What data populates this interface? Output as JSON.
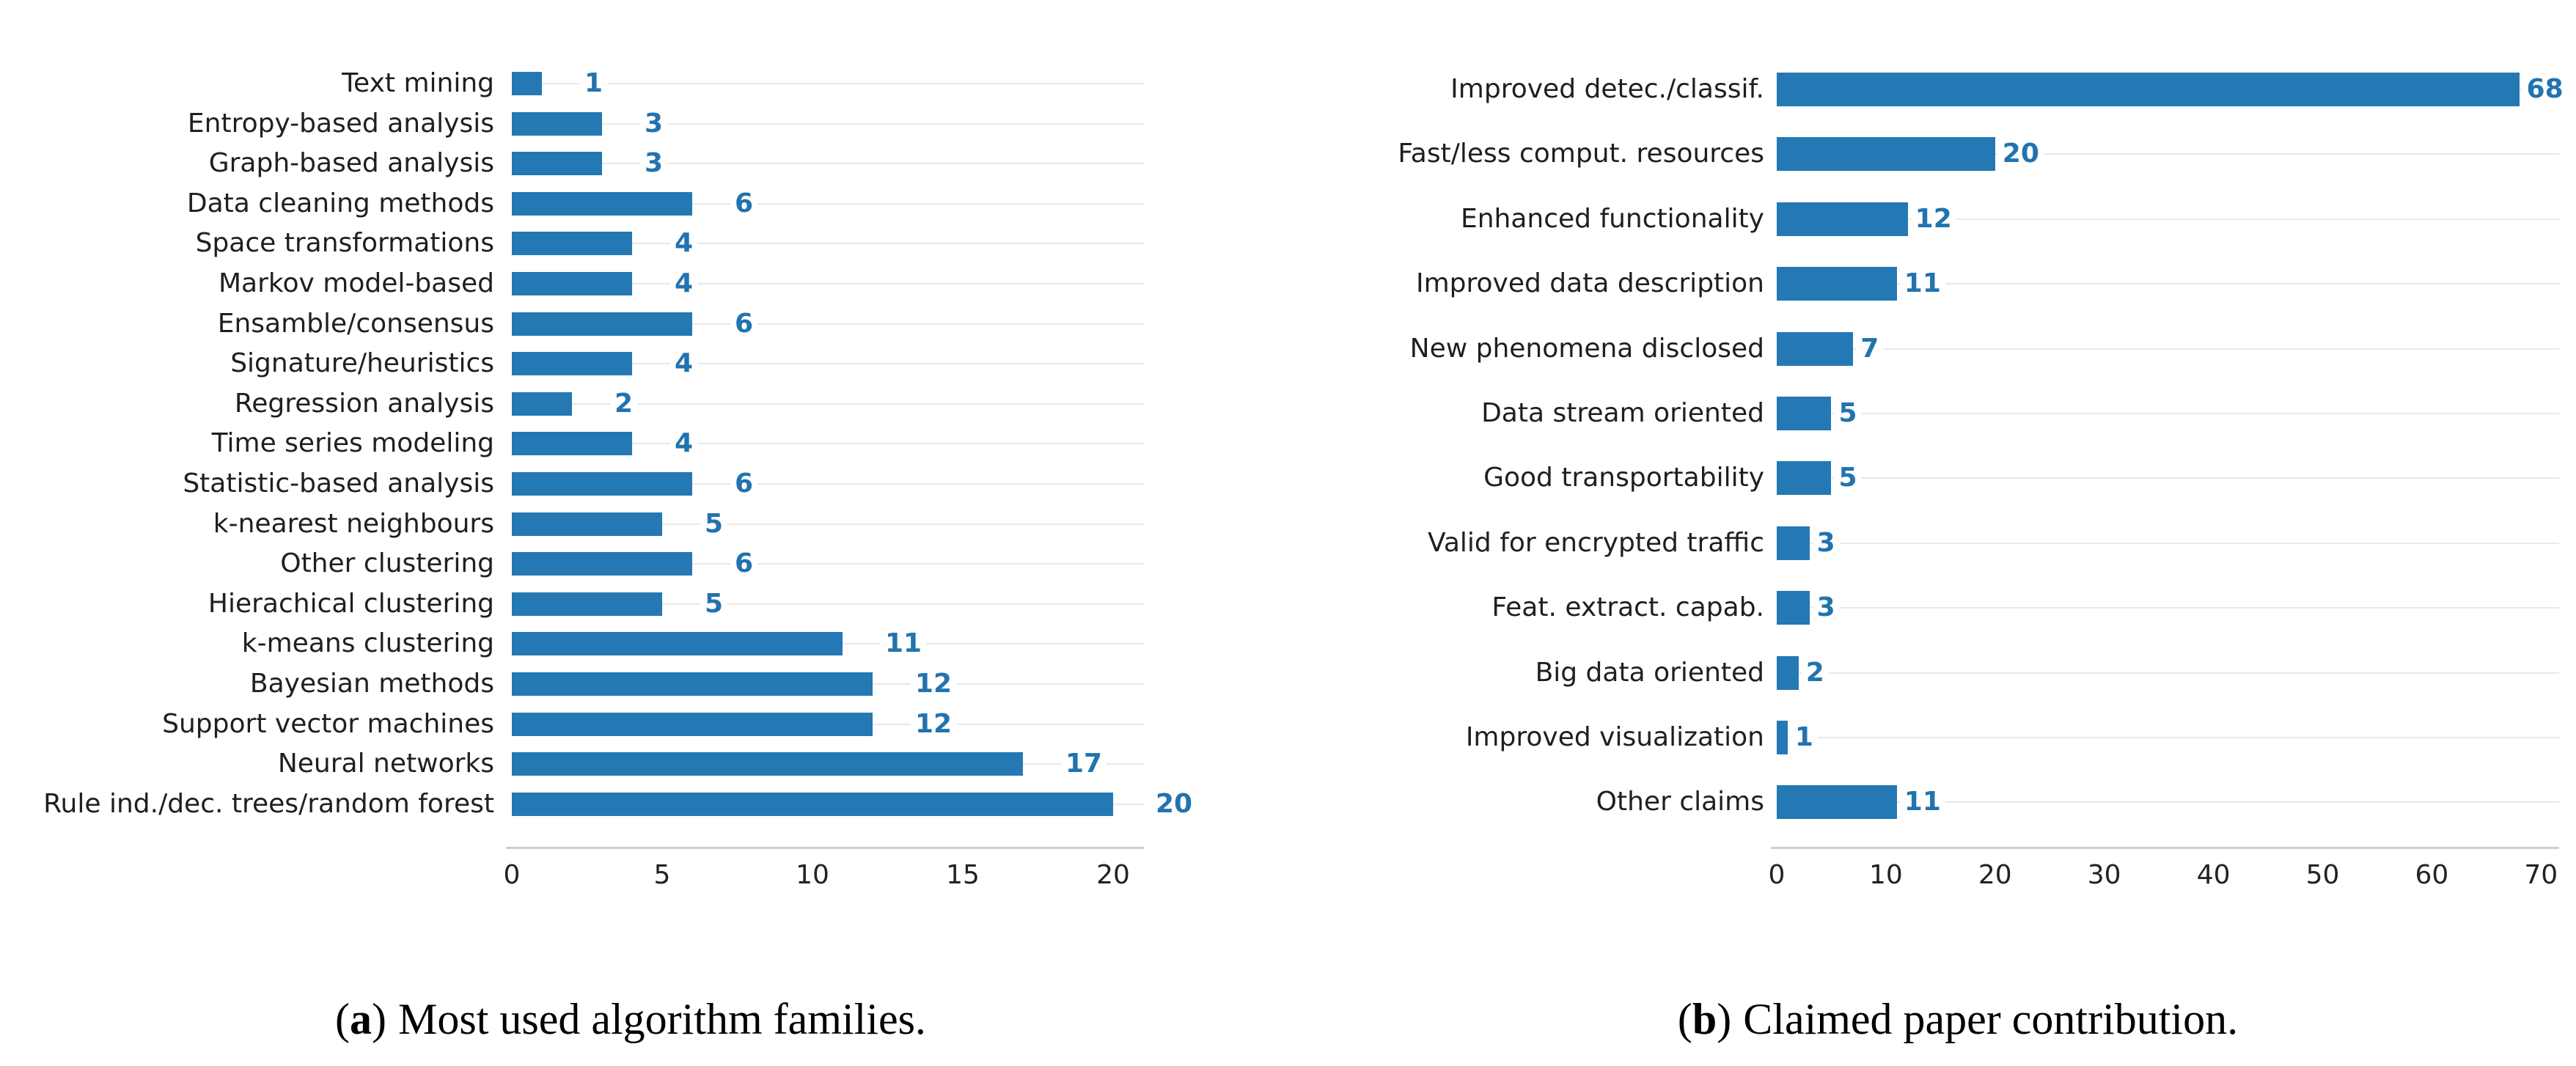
{
  "figure": {
    "background": "#ffffff",
    "bar_color": "#2478b4",
    "value_label_color": "#2273ae",
    "gridline_color": "#e8e8e8",
    "axis_line_color": "#cfcfcf",
    "category_label_color": "#1f1f1f",
    "tick_label_color": "#222222"
  },
  "chart_data": [
    {
      "id": "a",
      "type": "bar",
      "orientation": "horizontal",
      "grid": "row-lines",
      "legend": "none",
      "categories": [
        "Text mining",
        "Entropy-based analysis",
        "Graph-based analysis",
        "Data cleaning methods",
        "Space transformations",
        "Markov model-based",
        "Ensamble/consensus",
        "Signature/heuristics",
        "Regression analysis",
        "Time series modeling",
        "Statistic-based analysis",
        "k-nearest neighbours",
        "Other clustering",
        "Hierachical clustering",
        "k-means clustering",
        "Bayesian methods",
        "Support vector machines",
        "Neural networks",
        "Rule ind./dec. trees/random forest"
      ],
      "values": [
        1,
        3,
        3,
        6,
        4,
        4,
        6,
        4,
        2,
        4,
        6,
        5,
        6,
        5,
        11,
        12,
        12,
        17,
        20
      ],
      "xlabel": "",
      "ylabel": "",
      "xlim": [
        0,
        21.3
      ],
      "xticks": [
        0,
        5,
        10,
        15,
        20
      ],
      "caption": {
        "paren_open": "(",
        "letter": "a",
        "paren_close": ")",
        "text": "Most used algorithm families."
      }
    },
    {
      "id": "b",
      "type": "bar",
      "orientation": "horizontal",
      "grid": "row-lines",
      "legend": "none",
      "categories": [
        "Improved detec./classif.",
        "Fast/less comput. resources",
        "Enhanced functionality",
        "Improved data description",
        "New phenomena disclosed",
        "Data stream oriented",
        "Good transportability",
        "Valid for encrypted traffic",
        "Feat. extract. capab.",
        "Big data oriented",
        "Improved visualization",
        "Other claims"
      ],
      "values": [
        68,
        20,
        12,
        11,
        7,
        5,
        5,
        3,
        3,
        2,
        1,
        11
      ],
      "xlabel": "",
      "ylabel": "",
      "xlim": [
        0,
        71.6
      ],
      "xticks": [
        0,
        10,
        20,
        30,
        40,
        50,
        60,
        70
      ],
      "caption": {
        "paren_open": "(",
        "letter": "b",
        "paren_close": ")",
        "text": "Claimed paper contribution."
      }
    }
  ]
}
